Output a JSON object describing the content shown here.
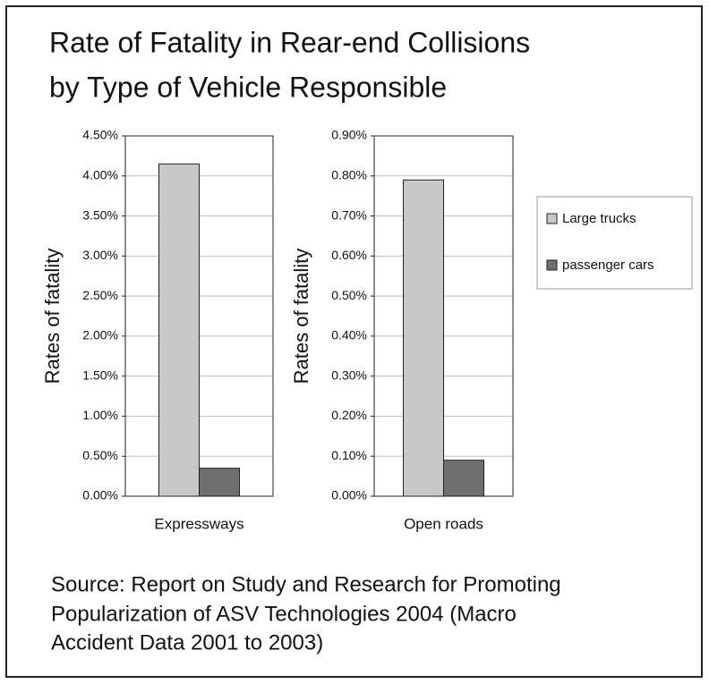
{
  "title": [
    "Rate of Fatality in Rear-end Collisions",
    "by Type of Vehicle Responsible"
  ],
  "legend": [
    {
      "name": "Large trucks",
      "color": "#c8c8c8"
    },
    {
      "name": "passenger cars",
      "color": "#6e6e6e"
    }
  ],
  "source": [
    "Source: Report on Study and Research for Promoting",
    "Popularization of ASV Technologies 2004 (Macro",
    "Accident Data 2001 to 2003)"
  ],
  "chart_data": [
    {
      "type": "bar",
      "categories": [
        "Expressways"
      ],
      "ylabel": "Rates of fatality",
      "series": [
        {
          "values": [
            4.15
          ]
        },
        {
          "values": [
            0.35
          ]
        }
      ],
      "ylim": [
        0,
        4.5
      ],
      "grid": true,
      "yticks": [
        {
          "value": 0,
          "label": "0.00%"
        },
        {
          "value": 0.5,
          "label": "0.50%"
        },
        {
          "value": 1,
          "label": "1.00%"
        },
        {
          "value": 1.5,
          "label": "1.50%"
        },
        {
          "value": 2,
          "label": "2.00%"
        },
        {
          "value": 2.5,
          "label": "2.50%"
        },
        {
          "value": 3,
          "label": "3.00%"
        },
        {
          "value": 3.5,
          "label": "3.50%"
        },
        {
          "value": 4,
          "label": "4.00%"
        },
        {
          "value": 4.5,
          "label": "4.50%"
        }
      ]
    },
    {
      "type": "bar",
      "categories": [
        "Open roads"
      ],
      "ylabel": "Rates of fatality",
      "series": [
        {
          "values": [
            0.79
          ]
        },
        {
          "values": [
            0.09
          ]
        }
      ],
      "ylim": [
        0,
        0.9
      ],
      "grid": true,
      "yticks": [
        {
          "value": 0,
          "label": "0.00%"
        },
        {
          "value": 0.1,
          "label": "0.10%"
        },
        {
          "value": 0.2,
          "label": "0.20%"
        },
        {
          "value": 0.3,
          "label": "0.30%"
        },
        {
          "value": 0.4,
          "label": "0.40%"
        },
        {
          "value": 0.5,
          "label": "0.50%"
        },
        {
          "value": 0.6,
          "label": "0.60%"
        },
        {
          "value": 0.7,
          "label": "0.70%"
        },
        {
          "value": 0.8,
          "label": "0.80%"
        },
        {
          "value": 0.9,
          "label": "0.90%"
        }
      ]
    }
  ]
}
